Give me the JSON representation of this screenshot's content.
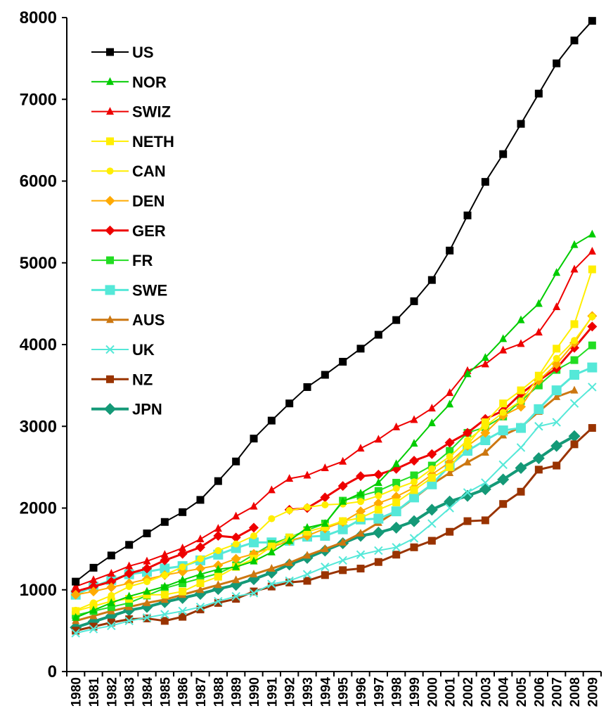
{
  "chart_data": {
    "type": "line",
    "title": "",
    "xlabel": "",
    "ylabel": "",
    "ylim": [
      0,
      8000
    ],
    "yticks": [
      0,
      1000,
      2000,
      3000,
      4000,
      5000,
      6000,
      7000,
      8000
    ],
    "grid": false,
    "legend_position": "top-left",
    "x": [
      "1980",
      "1981",
      "1982",
      "1983",
      "1984",
      "1985",
      "1986",
      "1987",
      "1988",
      "1989",
      "1990",
      "1991",
      "1992",
      "1993",
      "1994",
      "1995",
      "1996",
      "1997",
      "1998",
      "1999",
      "2000",
      "2001",
      "2002",
      "2003",
      "2004",
      "2005",
      "2006",
      "2007",
      "2008",
      "2009"
    ],
    "series": [
      {
        "name": "US",
        "color": "#000000",
        "marker": "square",
        "values": [
          1100,
          1270,
          1420,
          1550,
          1690,
          1830,
          1950,
          2100,
          2330,
          2570,
          2850,
          3070,
          3280,
          3480,
          3630,
          3790,
          3950,
          4120,
          4300,
          4530,
          4790,
          5150,
          5580,
          5990,
          6330,
          6700,
          7070,
          7440,
          7720,
          7960
        ]
      },
      {
        "name": "NOR",
        "color": "#00cc00",
        "marker": "triangle",
        "values": [
          660,
          750,
          840,
          920,
          980,
          1040,
          1120,
          1190,
          1250,
          1280,
          1350,
          1460,
          1600,
          1760,
          1810,
          2080,
          2180,
          2310,
          2540,
          2790,
          3040,
          3270,
          3640,
          3840,
          4070,
          4300,
          4500,
          4880,
          5220,
          5350
        ]
      },
      {
        "name": "SWIZ",
        "color": "#ee0000",
        "marker": "triangle",
        "values": [
          1040,
          1120,
          1200,
          1290,
          1350,
          1430,
          1510,
          1620,
          1750,
          1900,
          2020,
          2220,
          2360,
          2400,
          2490,
          2570,
          2730,
          2840,
          2990,
          3080,
          3220,
          3410,
          3680,
          3760,
          3930,
          4010,
          4150,
          4460,
          4920,
          5140
        ]
      },
      {
        "name": "NETH",
        "color": "#ffee00",
        "marker": "square",
        "values": [
          740,
          800,
          860,
          890,
          940,
          940,
          980,
          1080,
          1160,
          1280,
          1380,
          1530,
          1640,
          1710,
          1770,
          1840,
          1880,
          1980,
          2070,
          2220,
          2370,
          2500,
          2770,
          3050,
          3280,
          3440,
          3620,
          3950,
          4250,
          4920
        ]
      },
      {
        "name": "CAN",
        "color": "#ffee00",
        "marker": "circle",
        "values": [
          750,
          840,
          930,
          1040,
          1100,
          1180,
          1280,
          1380,
          1480,
          1560,
          1660,
          1870,
          1970,
          2010,
          2040,
          2050,
          2080,
          2150,
          2240,
          2320,
          2480,
          2630,
          2830,
          3000,
          3170,
          3310,
          3600,
          3830,
          4050,
          4340
        ]
      },
      {
        "name": "DEN",
        "color": "#ffaa00",
        "marker": "diamond",
        "values": [
          940,
          980,
          1030,
          1080,
          1130,
          1180,
          1220,
          1260,
          1300,
          1380,
          1440,
          1520,
          1600,
          1660,
          1750,
          1830,
          1960,
          2060,
          2140,
          2250,
          2410,
          2560,
          2760,
          2920,
          3130,
          3240,
          3560,
          3760,
          4020,
          4350
        ]
      },
      {
        "name": "GER",
        "color": "#ee0000",
        "marker": "diamond",
        "values": [
          980,
          1040,
          1100,
          1200,
          1260,
          1360,
          1440,
          1520,
          1660,
          1640,
          1760,
          null,
          1980,
          2000,
          2130,
          2270,
          2390,
          2410,
          2480,
          2580,
          2660,
          2800,
          2920,
          3090,
          3190,
          3400,
          3560,
          3710,
          3960,
          4220
        ]
      },
      {
        "name": "FR",
        "color": "#22dd22",
        "marker": "square",
        "values": [
          690,
          740,
          790,
          840,
          930,
          1020,
          1080,
          1140,
          1200,
          1300,
          1430,
          1560,
          1640,
          1730,
          1810,
          2090,
          2150,
          2210,
          2310,
          2400,
          2520,
          2700,
          2920,
          2990,
          3120,
          3310,
          3500,
          3690,
          3810,
          3990
        ]
      },
      {
        "name": "SWE",
        "color": "#55e8d8",
        "marker": "square",
        "values": [
          940,
          1040,
          1120,
          1190,
          1220,
          1260,
          1290,
          1360,
          1430,
          1510,
          1580,
          1580,
          1600,
          1650,
          1660,
          1740,
          1860,
          1870,
          1960,
          2130,
          2290,
          2520,
          2700,
          2830,
          2950,
          2980,
          3210,
          3440,
          3630,
          3720
        ]
      },
      {
        "name": "AUS",
        "color": "#cc7711",
        "marker": "triangle",
        "values": [
          620,
          680,
          740,
          790,
          840,
          880,
          940,
          1000,
          1060,
          1120,
          1190,
          1260,
          1330,
          1420,
          1500,
          1580,
          1690,
          1820,
          1960,
          2120,
          2290,
          2430,
          2560,
          2680,
          2890,
          2990,
          3180,
          3360,
          3440,
          null
        ]
      },
      {
        "name": "UK",
        "color": "#55e8d8",
        "marker": "x",
        "values": [
          470,
          520,
          560,
          620,
          660,
          700,
          740,
          790,
          860,
          920,
          960,
          1070,
          1110,
          1190,
          1280,
          1360,
          1430,
          1480,
          1520,
          1630,
          1810,
          2000,
          2190,
          2310,
          2530,
          2740,
          3000,
          3050,
          3280,
          3480
        ]
      },
      {
        "name": "NZ",
        "color": "#993300",
        "marker": "square",
        "values": [
          500,
          550,
          600,
          640,
          650,
          620,
          670,
          760,
          840,
          890,
          980,
          1040,
          1090,
          1110,
          1180,
          1240,
          1260,
          1340,
          1430,
          1520,
          1600,
          1710,
          1840,
          1850,
          2050,
          2200,
          2470,
          2520,
          2780,
          2980
        ]
      },
      {
        "name": "JPN",
        "color": "#149977",
        "marker": "diamond",
        "values": [
          540,
          610,
          680,
          750,
          790,
          850,
          900,
          950,
          1010,
          1060,
          1130,
          1210,
          1310,
          1390,
          1480,
          1570,
          1660,
          1700,
          1760,
          1840,
          1980,
          2080,
          2150,
          2230,
          2350,
          2490,
          2610,
          2760,
          2880,
          null
        ]
      }
    ]
  }
}
